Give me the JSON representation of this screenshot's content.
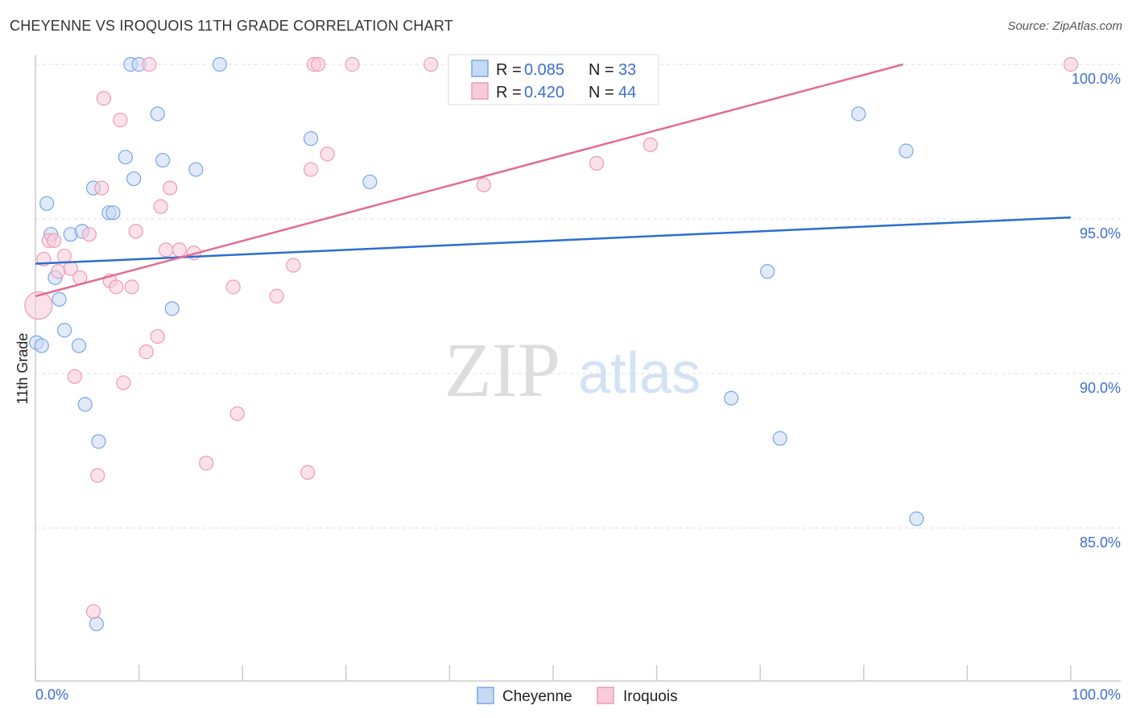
{
  "chart_data": {
    "type": "scatter",
    "title": "CHEYENNE VS IROQUOIS 11TH GRADE CORRELATION CHART",
    "source": "Source: ZipAtlas.com",
    "ylabel": "11th Grade",
    "xlabel": "",
    "xlim": [
      0,
      100
    ],
    "ylim": [
      80.0,
      100.3
    ],
    "x_tick_labels": [
      "0.0%",
      "100.0%"
    ],
    "y_ticks": [
      {
        "value": 100,
        "label": "100.0%"
      },
      {
        "value": 95,
        "label": "95.0%"
      },
      {
        "value": 90,
        "label": "90.0%"
      },
      {
        "value": 85,
        "label": "85.0%"
      }
    ],
    "watermark": {
      "part1": "ZIP",
      "part2": "atlas"
    },
    "legend": [
      {
        "series": "Cheyenne",
        "r_label": "R =",
        "r_value": "0.085",
        "n_label": "N =",
        "n_value": "33"
      },
      {
        "series": "Iroquois",
        "r_label": "R =",
        "r_value": "0.420",
        "n_label": "N =",
        "n_value": "44"
      }
    ],
    "series": [
      {
        "name": "Cheyenne",
        "color": "#7aa6e6",
        "fill": "#c6d9f5",
        "trend_color": "#2a6fcf",
        "trend": {
          "x0": 0,
          "y0": 93.55,
          "x1": 100,
          "y1": 95.05
        },
        "points": [
          [
            0.1,
            91.0
          ],
          [
            0.6,
            90.9
          ],
          [
            1.1,
            95.5
          ],
          [
            1.5,
            94.5
          ],
          [
            1.9,
            93.1
          ],
          [
            2.3,
            92.4
          ],
          [
            2.8,
            91.4
          ],
          [
            3.4,
            94.5
          ],
          [
            4.2,
            90.9
          ],
          [
            4.5,
            94.6
          ],
          [
            4.8,
            89.0
          ],
          [
            5.6,
            96.0
          ],
          [
            5.9,
            81.9
          ],
          [
            6.1,
            87.8
          ],
          [
            7.1,
            95.2
          ],
          [
            7.5,
            95.2
          ],
          [
            8.7,
            97.0
          ],
          [
            9.2,
            100.0
          ],
          [
            9.5,
            96.3
          ],
          [
            10.0,
            100.0
          ],
          [
            11.8,
            98.4
          ],
          [
            12.3,
            96.9
          ],
          [
            13.2,
            92.1
          ],
          [
            15.5,
            96.6
          ],
          [
            17.8,
            100.0
          ],
          [
            26.6,
            97.6
          ],
          [
            32.3,
            96.2
          ],
          [
            85.1,
            85.3
          ],
          [
            67.2,
            89.2
          ],
          [
            71.9,
            87.9
          ],
          [
            70.7,
            93.3
          ],
          [
            79.5,
            98.4
          ],
          [
            84.1,
            97.2
          ]
        ]
      },
      {
        "name": "Iroquois",
        "color": "#ee9ab5",
        "fill": "#f8cbd9",
        "trend_color": "#e36b95",
        "trend": {
          "x0": 0,
          "y0": 92.5,
          "x1": 83.8,
          "y1": 100.0
        },
        "points": [
          [
            0.3,
            92.2
          ],
          [
            0.8,
            93.7
          ],
          [
            1.3,
            94.3
          ],
          [
            1.8,
            94.3
          ],
          [
            2.2,
            93.3
          ],
          [
            2.8,
            93.8
          ],
          [
            3.4,
            93.4
          ],
          [
            3.8,
            89.9
          ],
          [
            4.3,
            93.1
          ],
          [
            5.2,
            94.5
          ],
          [
            5.6,
            82.3
          ],
          [
            6.0,
            86.7
          ],
          [
            6.4,
            96.0
          ],
          [
            6.6,
            98.9
          ],
          [
            7.2,
            93.0
          ],
          [
            7.8,
            92.8
          ],
          [
            8.2,
            98.2
          ],
          [
            8.5,
            89.7
          ],
          [
            9.3,
            92.8
          ],
          [
            9.7,
            94.6
          ],
          [
            11.0,
            100.0
          ],
          [
            10.7,
            90.7
          ],
          [
            11.8,
            91.2
          ],
          [
            12.1,
            95.4
          ],
          [
            12.6,
            94.0
          ],
          [
            13.0,
            96.0
          ],
          [
            13.9,
            94.0
          ],
          [
            15.3,
            93.9
          ],
          [
            16.5,
            87.1
          ],
          [
            19.1,
            92.8
          ],
          [
            19.5,
            88.7
          ],
          [
            23.3,
            92.5
          ],
          [
            24.9,
            93.5
          ],
          [
            26.3,
            86.8
          ],
          [
            26.6,
            96.6
          ],
          [
            26.9,
            100.0
          ],
          [
            27.3,
            100.0
          ],
          [
            28.2,
            97.1
          ],
          [
            30.6,
            100.0
          ],
          [
            38.2,
            100.0
          ],
          [
            43.3,
            96.1
          ],
          [
            54.2,
            96.8
          ],
          [
            59.4,
            97.4
          ],
          [
            100.0,
            100.0
          ]
        ]
      }
    ]
  }
}
